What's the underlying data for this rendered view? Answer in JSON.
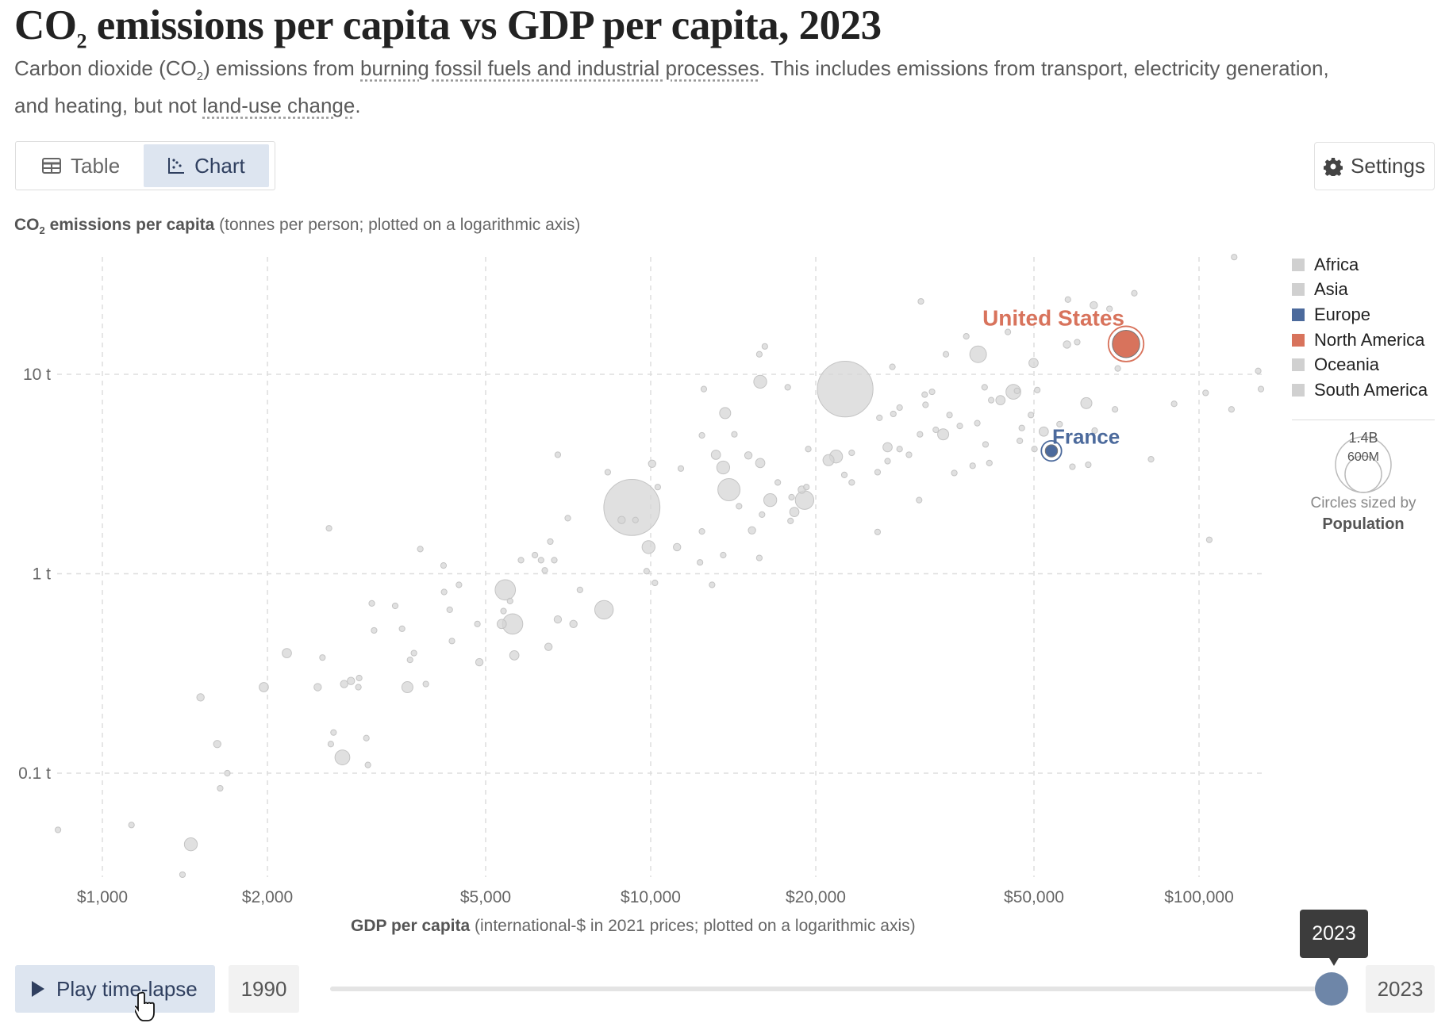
{
  "header": {
    "title_pre": "CO",
    "title_sub": "2",
    "title_post": " emissions per capita vs GDP per capita, 2023",
    "subtitle_1": "Carbon dioxide (CO",
    "subtitle_sub": "2",
    "subtitle_2": ") emissions from ",
    "subtitle_link1": "burning fossil fuels and industrial processes",
    "subtitle_3": ". This includes emissions from transport, electricity generation, and heating, but not ",
    "subtitle_link2": "land-use change",
    "subtitle_4": "."
  },
  "tabs": [
    {
      "label": "Table",
      "icon": "table-icon",
      "active": false
    },
    {
      "label": "Chart",
      "icon": "scatter-chart-icon",
      "active": true
    }
  ],
  "settings": {
    "label": "Settings",
    "icon": "gear-icon"
  },
  "axis_labels": {
    "y_bold_pre": "CO",
    "y_bold_sub": "2",
    "y_bold_post": " emissions per capita",
    "y_rest": " (tonnes per person; plotted on a logarithmic axis)",
    "x_bold": "GDP per capita",
    "x_rest": " (international-$ in 2021 prices; plotted on a logarithmic axis)"
  },
  "legend": {
    "items": [
      {
        "label": "Africa",
        "color": "#d0d0d0"
      },
      {
        "label": "Asia",
        "color": "#d0d0d0"
      },
      {
        "label": "Europe",
        "color": "#4c6a9c"
      },
      {
        "label": "North America",
        "color": "#d8735c"
      },
      {
        "label": "Oceania",
        "color": "#d0d0d0"
      },
      {
        "label": "South America",
        "color": "#d0d0d0"
      }
    ],
    "size_large": "1.4B",
    "size_small": "600M",
    "size_note": "Circles sized by",
    "size_variable": "Population"
  },
  "timeline": {
    "play_label": "Play time-lapse",
    "start_year": "1990",
    "end_year": "2023",
    "current_year": "2023",
    "progress": 1.0
  },
  "chart_data": {
    "type": "scatter",
    "title": "CO₂ emissions per capita vs GDP per capita, 2023",
    "xlabel": "GDP per capita (international-$ in 2021 prices; plotted on a logarithmic axis)",
    "ylabel": "CO₂ emissions per capita (tonnes per person; plotted on a logarithmic axis)",
    "x_scale": "log",
    "y_scale": "log",
    "x_ticks": [
      {
        "value": 1000,
        "label": "$1,000"
      },
      {
        "value": 2000,
        "label": "$2,000"
      },
      {
        "value": 5000,
        "label": "$5,000"
      },
      {
        "value": 10000,
        "label": "$10,000"
      },
      {
        "value": 20000,
        "label": "$20,000"
      },
      {
        "value": 50000,
        "label": "$50,000"
      },
      {
        "value": 100000,
        "label": "$100,000"
      }
    ],
    "y_ticks": [
      {
        "value": 0.1,
        "label": "0.1 t"
      },
      {
        "value": 1,
        "label": "1 t"
      },
      {
        "value": 10,
        "label": "10 t"
      }
    ],
    "grid": true,
    "legend_position": "right",
    "default_color": "#d6d6d6",
    "highlighted": [
      {
        "name": "United States",
        "gdp": 73600,
        "co2": 14.2,
        "population_millions": 340,
        "color": "#d8735c"
      },
      {
        "name": "France",
        "gdp": 53800,
        "co2": 4.13,
        "population_millions": 68,
        "color": "#4c6a9c"
      }
    ],
    "points_columns": [
      "gdp",
      "co2",
      "population_millions"
    ],
    "points": [
      [
        830,
        0.052,
        14
      ],
      [
        1130,
        0.055,
        14
      ],
      [
        1400,
        0.031,
        14
      ],
      [
        1450,
        0.044,
        76
      ],
      [
        1510,
        0.24,
        25
      ],
      [
        1620,
        0.14,
        25
      ],
      [
        1640,
        0.084,
        14
      ],
      [
        1690,
        0.1,
        14
      ],
      [
        2170,
        0.4,
        39
      ],
      [
        1970,
        0.27,
        39
      ],
      [
        2470,
        0.27,
        25
      ],
      [
        2520,
        0.38,
        14
      ],
      [
        2590,
        1.69,
        14
      ],
      [
        2640,
        0.16,
        14
      ],
      [
        2610,
        0.14,
        14
      ],
      [
        2740,
        0.12,
        100
      ],
      [
        2760,
        0.28,
        25
      ],
      [
        2840,
        0.29,
        25
      ],
      [
        2940,
        0.3,
        14
      ],
      [
        2930,
        0.27,
        14
      ],
      [
        3030,
        0.15,
        14
      ],
      [
        3050,
        0.11,
        14
      ],
      [
        3100,
        0.71,
        14
      ],
      [
        3130,
        0.52,
        14
      ],
      [
        3420,
        0.69,
        14
      ],
      [
        3520,
        0.53,
        14
      ],
      [
        3600,
        0.27,
        56
      ],
      [
        3640,
        0.37,
        14
      ],
      [
        3700,
        0.4,
        14
      ],
      [
        3800,
        1.33,
        14
      ],
      [
        3890,
        0.28,
        14
      ],
      [
        4190,
        1.1,
        14
      ],
      [
        4200,
        0.81,
        14
      ],
      [
        4300,
        0.66,
        14
      ],
      [
        4340,
        0.46,
        14
      ],
      [
        4470,
        0.88,
        14
      ],
      [
        4830,
        0.56,
        14
      ],
      [
        4870,
        0.36,
        25
      ],
      [
        5430,
        0.83,
        188
      ],
      [
        5540,
        0.73,
        14
      ],
      [
        5390,
        0.65,
        14
      ],
      [
        5350,
        0.56,
        39
      ],
      [
        5600,
        0.56,
        188
      ],
      [
        5640,
        0.39,
        39
      ],
      [
        5800,
        1.17,
        14
      ],
      [
        6150,
        1.24,
        14
      ],
      [
        6310,
        1.17,
        14
      ],
      [
        6410,
        1.04,
        14
      ],
      [
        6560,
        1.45,
        14
      ],
      [
        6670,
        1.17,
        14
      ],
      [
        6770,
        0.59,
        25
      ],
      [
        6510,
        0.43,
        25
      ],
      [
        7060,
        1.9,
        14
      ],
      [
        7230,
        0.56,
        25
      ],
      [
        7430,
        0.83,
        14
      ],
      [
        6770,
        3.95,
        14
      ],
      [
        8220,
        0.66,
        156
      ],
      [
        8350,
        3.23,
        14
      ],
      [
        9240,
        2.15,
        1430
      ],
      [
        8850,
        1.86,
        25
      ],
      [
        9380,
        1.86,
        14
      ],
      [
        9910,
        1.36,
        76
      ],
      [
        9830,
        1.03,
        14
      ],
      [
        10060,
        3.56,
        25
      ],
      [
        10180,
        0.9,
        14
      ],
      [
        10300,
        2.72,
        14
      ],
      [
        11170,
        1.36,
        25
      ],
      [
        11350,
        3.37,
        14
      ],
      [
        12300,
        1.14,
        14
      ],
      [
        12400,
        1.63,
        14
      ],
      [
        12400,
        4.94,
        14
      ],
      [
        12500,
        8.43,
        14
      ],
      [
        12940,
        0.88,
        14
      ],
      [
        13150,
        3.95,
        39
      ],
      [
        13560,
        3.41,
        76
      ],
      [
        13670,
        6.39,
        56
      ],
      [
        13560,
        1.24,
        14
      ],
      [
        13890,
        2.64,
        224
      ],
      [
        14210,
        5.0,
        14
      ],
      [
        14490,
        2.18,
        14
      ],
      [
        15070,
        3.92,
        25
      ],
      [
        15300,
        1.65,
        25
      ],
      [
        15780,
        1.2,
        14
      ],
      [
        15840,
        3.59,
        39
      ],
      [
        15840,
        9.18,
        76
      ],
      [
        15780,
        12.6,
        14
      ],
      [
        16150,
        13.8,
        14
      ],
      [
        15960,
        1.98,
        14
      ],
      [
        16520,
        2.34,
        76
      ],
      [
        17050,
        2.87,
        14
      ],
      [
        17780,
        8.61,
        14
      ],
      [
        17990,
        1.84,
        14
      ],
      [
        18070,
        2.42,
        14
      ],
      [
        18280,
        2.04,
        39
      ],
      [
        18860,
        2.64,
        25
      ],
      [
        19080,
        2.34,
        156
      ],
      [
        19380,
        4.22,
        14
      ],
      [
        19230,
        2.72,
        14
      ],
      [
        21100,
        3.71,
        56
      ],
      [
        21780,
        3.87,
        76
      ],
      [
        22630,
        8.43,
        1410
      ],
      [
        22550,
        3.13,
        14
      ],
      [
        23260,
        2.87,
        14
      ],
      [
        23260,
        4.04,
        14
      ],
      [
        25930,
        1.62,
        14
      ],
      [
        25930,
        3.23,
        14
      ],
      [
        26130,
        6.05,
        14
      ],
      [
        27040,
        4.31,
        39
      ],
      [
        27040,
        3.67,
        14
      ],
      [
        27590,
        10.9,
        14
      ],
      [
        27700,
        6.33,
        14
      ],
      [
        28440,
        6.81,
        14
      ],
      [
        28440,
        4.22,
        14
      ],
      [
        29580,
        3.95,
        14
      ],
      [
        30870,
        2.34,
        14
      ],
      [
        30980,
        5.0,
        14
      ],
      [
        31100,
        23.2,
        14
      ],
      [
        31600,
        7.91,
        14
      ],
      [
        31710,
        7.03,
        14
      ],
      [
        32590,
        8.17,
        14
      ],
      [
        33110,
        5.27,
        14
      ],
      [
        34150,
        5.0,
        56
      ],
      [
        34550,
        12.6,
        14
      ],
      [
        35070,
        6.25,
        14
      ],
      [
        35780,
        3.2,
        14
      ],
      [
        36620,
        5.51,
        14
      ],
      [
        37630,
        15.5,
        14
      ],
      [
        38650,
        3.48,
        14
      ],
      [
        39410,
        5.69,
        14
      ],
      [
        39550,
        12.6,
        126
      ],
      [
        40640,
        8.61,
        14
      ],
      [
        40800,
        4.45,
        14
      ],
      [
        41460,
        3.59,
        14
      ],
      [
        41780,
        7.42,
        14
      ],
      [
        43440,
        7.42,
        39
      ],
      [
        44810,
        16.3,
        14
      ],
      [
        45860,
        8.17,
        100
      ],
      [
        46570,
        8.26,
        14
      ],
      [
        47110,
        4.64,
        14
      ],
      [
        47510,
        5.38,
        14
      ],
      [
        49370,
        6.25,
        14
      ],
      [
        49910,
        11.4,
        39
      ],
      [
        50100,
        4.22,
        14
      ],
      [
        50700,
        8.34,
        14
      ],
      [
        52100,
        5.16,
        39
      ],
      [
        52720,
        4.27,
        14
      ],
      [
        55680,
        5.62,
        14
      ],
      [
        57660,
        23.7,
        14
      ],
      [
        57430,
        14.1,
        25
      ],
      [
        58760,
        3.44,
        14
      ],
      [
        59950,
        14.5,
        14
      ],
      [
        62300,
        7.17,
        56
      ],
      [
        62800,
        3.52,
        14
      ],
      [
        64270,
        22.2,
        25
      ],
      [
        64520,
        5.22,
        14
      ],
      [
        68660,
        21.3,
        14
      ],
      [
        70270,
        6.67,
        14
      ],
      [
        71090,
        10.7,
        14
      ],
      [
        76210,
        25.5,
        14
      ],
      [
        81750,
        3.75,
        14
      ],
      [
        90070,
        7.11,
        14
      ],
      [
        102800,
        8.07,
        14
      ],
      [
        104400,
        1.48,
        14
      ],
      [
        114600,
        6.67,
        14
      ],
      [
        115900,
        38.7,
        14
      ],
      [
        128200,
        10.4,
        14
      ],
      [
        129700,
        8.43,
        14
      ]
    ]
  }
}
